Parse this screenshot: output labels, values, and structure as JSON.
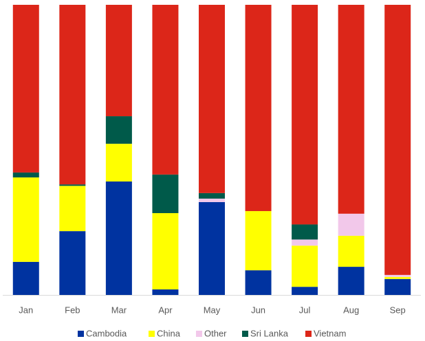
{
  "chart_data": {
    "type": "stacked_bar",
    "categories": [
      "Jan",
      "Feb",
      "Mar",
      "Apr",
      "May",
      "Jun",
      "Jul",
      "Aug",
      "Sep"
    ],
    "series": [
      {
        "name": "Cambodia",
        "color": "#0033a0",
        "values": [
          11.4,
          22.0,
          39.1,
          1.9,
          32.0,
          8.5,
          2.8,
          9.7,
          5.5
        ]
      },
      {
        "name": "China",
        "color": "#ffff00",
        "values": [
          29.1,
          15.6,
          13.0,
          26.3,
          0,
          20.4,
          14.2,
          10.7,
          0.7
        ]
      },
      {
        "name": "Other",
        "color": "#f2c8ea",
        "values": [
          0,
          0,
          0,
          0,
          1.2,
          0,
          2.1,
          7.6,
          0.7
        ]
      },
      {
        "name": "Sri Lanka",
        "color": "#005a4a",
        "values": [
          1.7,
          0.5,
          9.5,
          13.3,
          1.9,
          0,
          5.2,
          0,
          0
        ]
      },
      {
        "name": "Vietnam",
        "color": "#dc2619",
        "values": [
          57.8,
          61.9,
          38.4,
          58.5,
          64.9,
          71.1,
          75.7,
          72.0,
          93.1
        ]
      }
    ],
    "ylim": [
      0,
      100
    ],
    "grid": false,
    "legend": "bottom"
  }
}
